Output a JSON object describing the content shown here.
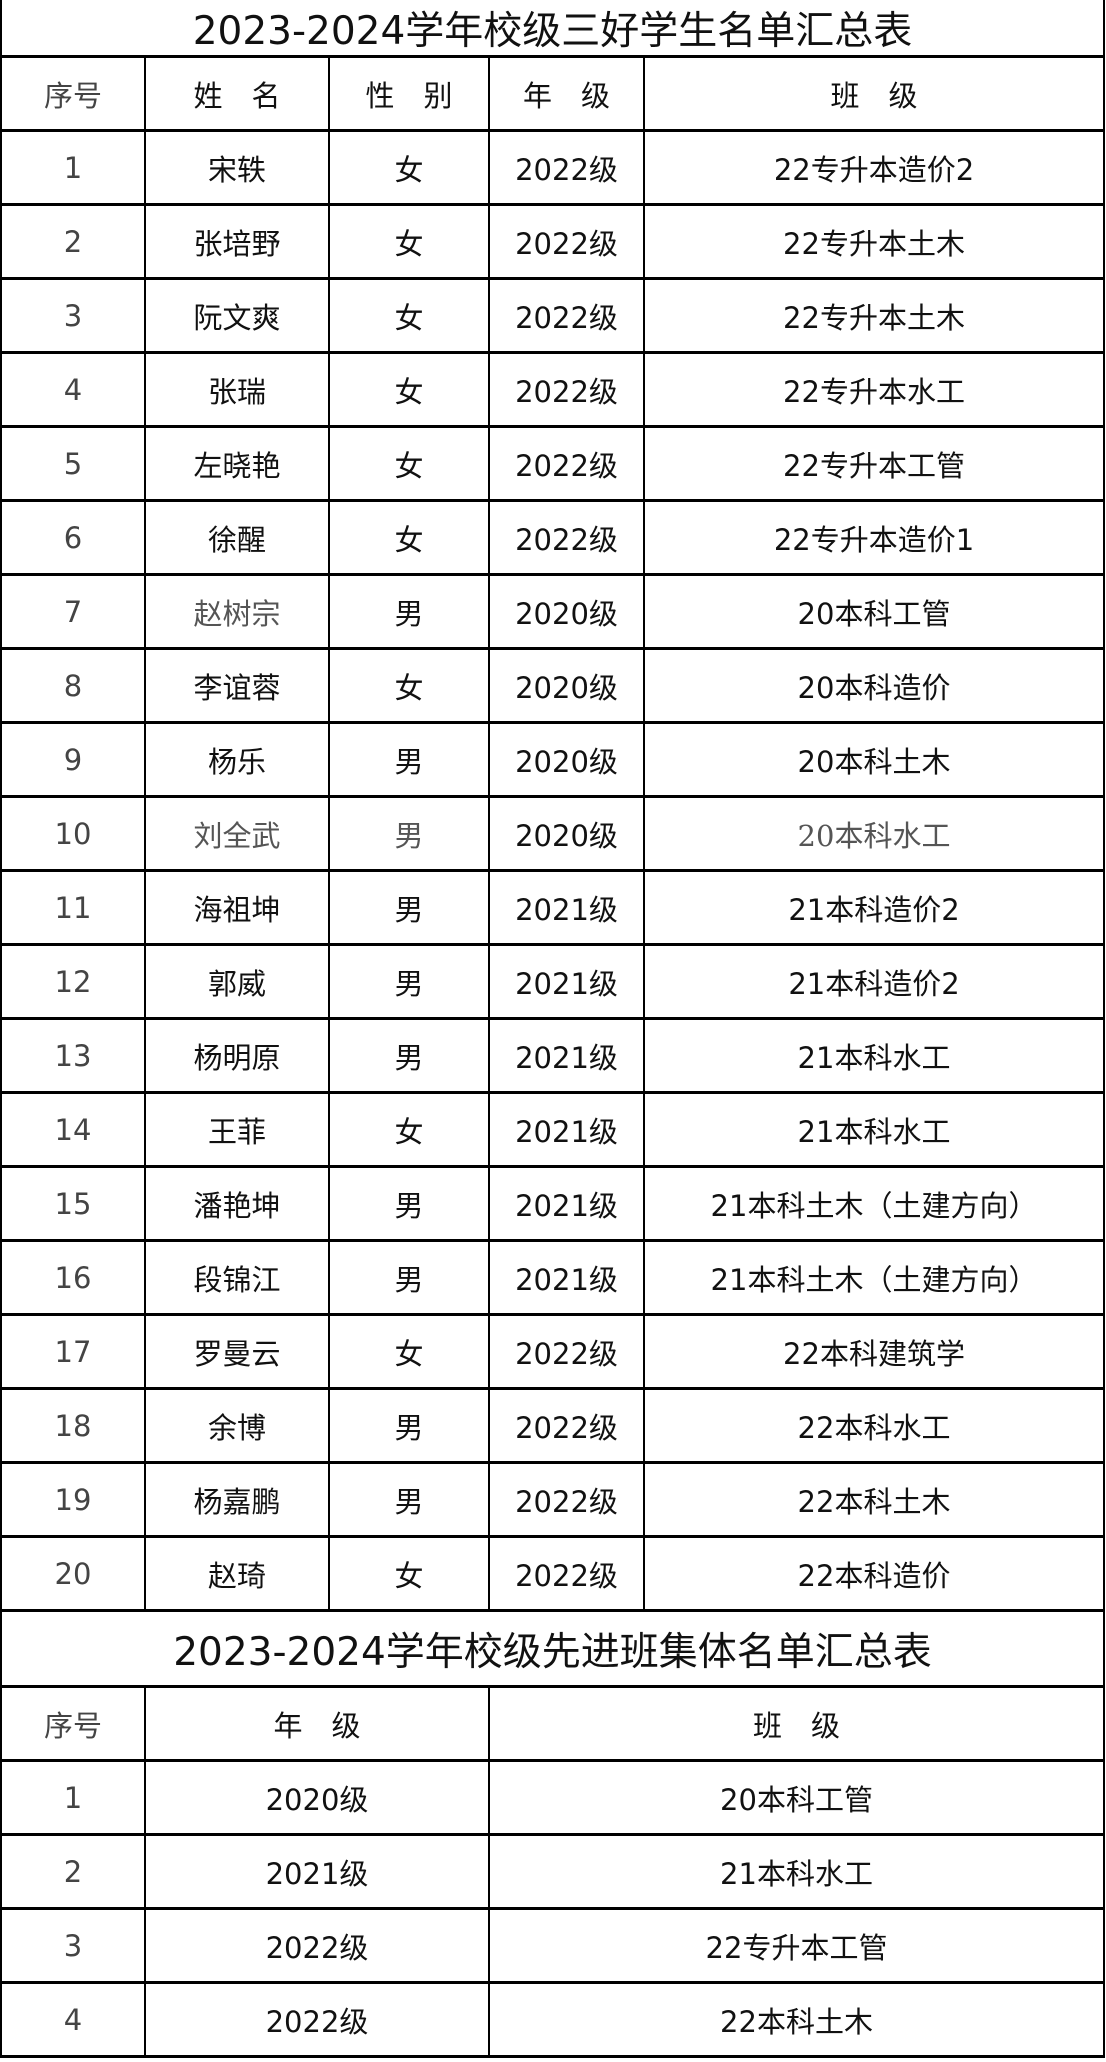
{
  "students_table": {
    "title": "2023-2024学年校级三好学生名单汇总表",
    "headers": [
      "序号",
      "姓　名",
      "性　别",
      "年　级",
      "班　级"
    ],
    "rows": [
      [
        "1",
        "宋轶",
        "女",
        "2022级",
        "22专升本造价2"
      ],
      [
        "2",
        "张培野",
        "女",
        "2022级",
        "22专升本土木"
      ],
      [
        "3",
        "阮文爽",
        "女",
        "2022级",
        "22专升本土木"
      ],
      [
        "4",
        "张瑞",
        "女",
        "2022级",
        "22专升本水工"
      ],
      [
        "5",
        "左晓艳",
        "女",
        "2022级",
        "22专升本工管"
      ],
      [
        "6",
        "徐醒",
        "女",
        "2022级",
        "22专升本造价1"
      ],
      [
        "7",
        "赵树宗",
        "男",
        "2020级",
        "20本科工管"
      ],
      [
        "8",
        "李谊蓉",
        "女",
        "2020级",
        "20本科造价"
      ],
      [
        "9",
        "杨乐",
        "男",
        "2020级",
        "20本科土木"
      ],
      [
        "10",
        "刘全武",
        "男",
        "2020级",
        "20本科水工"
      ],
      [
        "11",
        "海祖坤",
        "男",
        "2021级",
        "21本科造价2"
      ],
      [
        "12",
        "郭威",
        "男",
        "2021级",
        "21本科造价2"
      ],
      [
        "13",
        "杨明原",
        "男",
        "2021级",
        "21本科水工"
      ],
      [
        "14",
        "王菲",
        "女",
        "2021级",
        "21本科水工"
      ],
      [
        "15",
        "潘艳坤",
        "男",
        "2021级",
        "21本科土木（土建方向）"
      ],
      [
        "16",
        "段锦江",
        "男",
        "2021级",
        "21本科土木（土建方向）"
      ],
      [
        "17",
        "罗曼云",
        "女",
        "2022级",
        "22本科建筑学"
      ],
      [
        "18",
        "余博",
        "男",
        "2022级",
        "22本科水工"
      ],
      [
        "19",
        "杨嘉鹏",
        "男",
        "2022级",
        "22本科土木"
      ],
      [
        "20",
        "赵琦",
        "女",
        "2022级",
        "22本科造价"
      ]
    ]
  },
  "classes_table": {
    "title": "2023-2024学年校级先进班集体名单汇总表",
    "headers": [
      "序号",
      "年　级",
      "班　级"
    ],
    "rows": [
      [
        "1",
        "2020级",
        "20本科工管"
      ],
      [
        "2",
        "2021级",
        "21本科水工"
      ],
      [
        "3",
        "2022级",
        "22专升本工管"
      ],
      [
        "4",
        "2022级",
        "22本科土木"
      ]
    ]
  }
}
